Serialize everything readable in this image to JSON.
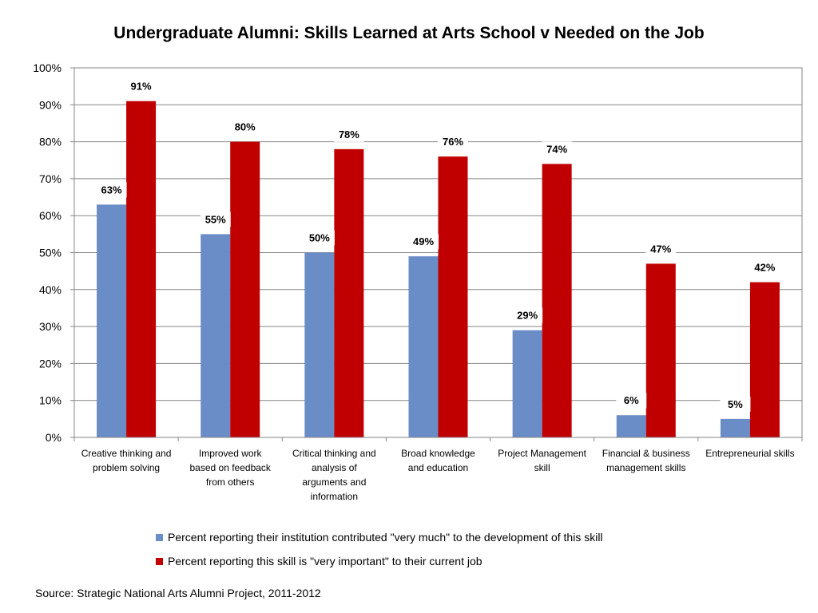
{
  "chart_data": {
    "type": "bar",
    "title": "Undergraduate Alumni: Skills Learned at Arts School v Needed on the Job",
    "categories": [
      [
        "Creative thinking and",
        "problem solving"
      ],
      [
        "Improved work",
        "based on feedback",
        "from others"
      ],
      [
        "Critical thinking and",
        "analysis of",
        "arguments and",
        "information"
      ],
      [
        "Broad knowledge",
        "and education"
      ],
      [
        "Project Management",
        "skill"
      ],
      [
        "Financial & business",
        "management skills"
      ],
      [
        "Entrepreneurial skills"
      ]
    ],
    "series": [
      {
        "name": "Percent reporting their institution contributed \"very much\" to the development of this skill",
        "color": "#6A8CC7",
        "values": [
          63,
          55,
          50,
          49,
          29,
          6,
          5
        ],
        "labels": [
          "63%",
          "55%",
          "50%",
          "49%",
          "29%",
          "6%",
          "5%"
        ]
      },
      {
        "name": "Percent reporting this skill is \"very important\" to their current job",
        "color": "#C00000",
        "values": [
          91,
          80,
          78,
          76,
          74,
          47,
          42
        ],
        "labels": [
          "91%",
          "80%",
          "78%",
          "76%",
          "74%",
          "47%",
          "42%"
        ]
      }
    ],
    "ylim": [
      0,
      100
    ],
    "yticks": [
      "0%",
      "10%",
      "20%",
      "30%",
      "40%",
      "50%",
      "60%",
      "70%",
      "80%",
      "90%",
      "100%"
    ],
    "grid": true,
    "legend_position": "bottom"
  },
  "source_note": "Source: Strategic National Arts Alumni Project, 2011-2012"
}
